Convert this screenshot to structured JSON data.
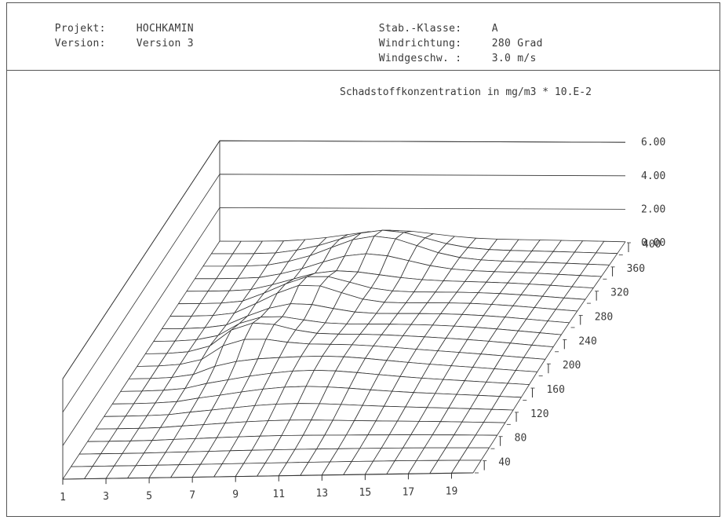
{
  "header": {
    "project_label": "Projekt:",
    "project_value": "HOCHKAMIN",
    "version_label": "Version:",
    "version_value": "Version 3",
    "stab_label": "Stab.-Klasse:",
    "stab_value": "A",
    "wind_dir_label": "Windrichtung:",
    "wind_dir_value": "280 Grad",
    "wind_speed_label": "Windgeschw. :",
    "wind_speed_value": "3.0 m/s"
  },
  "chart_data": {
    "type": "surface3d",
    "title": "Schadstoffkonzentration in mg/m3 * 10.E-2",
    "x_ticks": [
      "1",
      "3",
      "5",
      "7",
      "9",
      "11",
      "13",
      "15",
      "17",
      "19"
    ],
    "y_ticks": [
      "40",
      "80",
      "120",
      "160",
      "200",
      "240",
      "280",
      "320",
      "360",
      "400"
    ],
    "z_ticks": [
      "0.00",
      "2.00",
      "4.00",
      "6.00"
    ],
    "x_range": [
      1,
      19
    ],
    "y_range": [
      20,
      400
    ],
    "z_range": [
      0,
      6
    ],
    "grid_x_count": 20,
    "grid_y_count": 20,
    "surface_peaks": [
      {
        "x": 9,
        "y": 360,
        "z": 1.9
      },
      {
        "x": 7,
        "y": 280,
        "z": 1.8
      },
      {
        "x": 6,
        "y": 200,
        "z": 1.5
      }
    ]
  }
}
